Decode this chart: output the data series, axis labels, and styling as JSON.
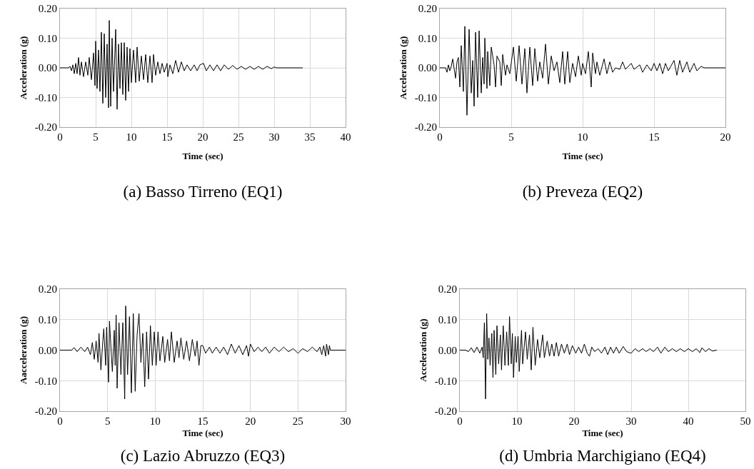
{
  "chart_data": [
    {
      "type": "line",
      "title": "(a) Basso Tirreno (EQ1)",
      "xlabel": "Time (sec)",
      "ylabel": "Acceleration (g)",
      "xlim": [
        0,
        40
      ],
      "xticks": [
        0,
        5,
        10,
        15,
        20,
        25,
        30,
        35,
        40
      ],
      "ylim": [
        -0.2,
        0.2
      ],
      "yticks": [
        {
          "value": -0.2,
          "label": "-0.20"
        },
        {
          "value": -0.1,
          "label": "-0.10"
        },
        {
          "value": 0,
          "label": "0.00"
        },
        {
          "value": 0.1,
          "label": "0.10"
        },
        {
          "value": 0.2,
          "label": "0.20"
        }
      ],
      "grid": true,
      "marker": "none",
      "line_style": "solid",
      "series": [
        {
          "color": "#000000",
          "x": [
            0,
            1.2,
            1.4,
            1.6,
            1.8,
            2.0,
            2.2,
            2.4,
            2.6,
            2.8,
            3.0,
            3.3,
            3.6,
            3.9,
            4.1,
            4.4,
            4.7,
            4.9,
            5.0,
            5.2,
            5.4,
            5.6,
            5.8,
            6.0,
            6.2,
            6.4,
            6.6,
            6.8,
            6.9,
            7.1,
            7.3,
            7.5,
            7.8,
            8.0,
            8.2,
            8.4,
            8.6,
            8.8,
            9.0,
            9.2,
            9.4,
            9.6,
            9.8,
            10.0,
            10.3,
            10.6,
            10.8,
            11.1,
            11.4,
            11.7,
            12.0,
            12.3,
            12.6,
            12.9,
            13.1,
            13.4,
            13.7,
            14.0,
            14.3,
            14.6,
            15.0,
            15.1,
            15.4,
            15.8,
            16.2,
            16.6,
            17.0,
            17.4,
            17.8,
            18.3,
            18.8,
            19.2,
            19.6,
            20.1,
            20.5,
            21.0,
            21.5,
            22.0,
            22.5,
            23.0,
            23.6,
            24.2,
            24.8,
            25.4,
            26.0,
            26.6,
            27.2,
            27.8,
            28.4,
            29.0,
            29.6,
            30.0,
            30.3,
            34
          ],
          "values": [
            0,
            0,
            0.005,
            -0.01,
            0.01,
            -0.02,
            0.015,
            -0.02,
            0.035,
            -0.025,
            0.02,
            -0.03,
            0.02,
            -0.025,
            0.035,
            -0.04,
            0.05,
            -0.06,
            0.09,
            -0.07,
            0.06,
            -0.08,
            0.12,
            -0.12,
            0.115,
            -0.1,
            0.08,
            -0.135,
            0.16,
            -0.13,
            0.1,
            -0.08,
            0.13,
            -0.14,
            0.08,
            -0.07,
            0.085,
            -0.09,
            0.085,
            -0.11,
            0.07,
            -0.08,
            0.065,
            -0.05,
            0.06,
            -0.05,
            0.07,
            -0.045,
            0.04,
            -0.04,
            0.045,
            -0.05,
            0.04,
            -0.05,
            0.045,
            -0.025,
            0.02,
            -0.02,
            0.015,
            -0.015,
            0.015,
            -0.03,
            0.01,
            -0.02,
            0.025,
            -0.015,
            0.02,
            -0.01,
            0.01,
            -0.01,
            0.01,
            -0.01,
            0.01,
            0.015,
            -0.01,
            0.01,
            -0.01,
            0.01,
            -0.01,
            0.01,
            -0.005,
            0.008,
            -0.005,
            0.005,
            -0.005,
            0.005,
            -0.005,
            0.005,
            -0.005,
            0.005,
            -0.003,
            0.003,
            0,
            0
          ]
        }
      ]
    },
    {
      "type": "line",
      "title": "(b) Preveza (EQ2)",
      "xlabel": "Time (sec)",
      "ylabel": "Acceleration (g)",
      "xlim": [
        0,
        20
      ],
      "xticks": [
        0,
        5,
        10,
        15,
        20
      ],
      "ylim": [
        -0.2,
        0.2
      ],
      "yticks": [
        {
          "value": -0.2,
          "label": "-0.20"
        },
        {
          "value": -0.1,
          "label": "-0.10"
        },
        {
          "value": 0,
          "label": "0.00"
        },
        {
          "value": 0.1,
          "label": "0.10"
        },
        {
          "value": 0.2,
          "label": "0.20"
        }
      ],
      "grid": true,
      "marker": "none",
      "line_style": "solid",
      "series": [
        {
          "color": "#000000",
          "x": [
            0,
            0.4,
            0.5,
            0.6,
            0.7,
            0.8,
            0.9,
            1.1,
            1.2,
            1.3,
            1.4,
            1.5,
            1.65,
            1.75,
            1.9,
            2.05,
            2.2,
            2.3,
            2.4,
            2.5,
            2.65,
            2.75,
            2.9,
            3.0,
            3.1,
            3.15,
            3.3,
            3.35,
            3.5,
            3.6,
            3.8,
            3.9,
            4.0,
            4.2,
            4.3,
            4.4,
            4.6,
            4.7,
            4.9,
            5.15,
            5.35,
            5.55,
            5.75,
            5.95,
            6.1,
            6.3,
            6.5,
            6.65,
            6.85,
            7.0,
            7.2,
            7.4,
            7.6,
            7.8,
            8.0,
            8.2,
            8.4,
            8.6,
            8.75,
            8.95,
            9.1,
            9.3,
            9.5,
            9.7,
            9.9,
            10.0,
            10.2,
            10.4,
            10.6,
            10.7,
            10.9,
            11.0,
            11.2,
            11.5,
            11.7,
            11.9,
            12.1,
            12.3,
            12.6,
            12.8,
            13.0,
            13.4,
            13.6,
            14.0,
            14.2,
            14.5,
            14.8,
            15.0,
            15.2,
            15.4,
            15.6,
            15.8,
            16.0,
            16.4,
            16.6,
            16.8,
            17.0,
            17.3,
            17.5,
            17.8,
            18.0,
            18.3,
            18.5,
            20
          ],
          "values": [
            0,
            0,
            -0.015,
            0.01,
            -0.01,
            0.005,
            0.03,
            -0.035,
            0.02,
            0.035,
            -0.065,
            0.075,
            -0.08,
            0.14,
            -0.16,
            0.13,
            -0.085,
            0.025,
            -0.13,
            0.12,
            -0.1,
            0.125,
            -0.085,
            0.035,
            -0.055,
            0.1,
            -0.07,
            0.055,
            -0.06,
            0.07,
            0.01,
            -0.065,
            0.04,
            0.02,
            -0.06,
            0.045,
            -0.025,
            0.01,
            -0.02,
            0.07,
            -0.045,
            0.075,
            -0.055,
            0.065,
            -0.085,
            0.07,
            -0.06,
            0.065,
            -0.045,
            0.02,
            -0.035,
            0.08,
            -0.055,
            0.04,
            -0.01,
            0.02,
            -0.05,
            0.055,
            -0.055,
            0.055,
            -0.05,
            0.015,
            -0.03,
            0.04,
            -0.025,
            0.015,
            -0.02,
            0.055,
            -0.065,
            0.05,
            -0.02,
            0.02,
            -0.025,
            0.03,
            -0.02,
            0.02,
            -0.015,
            0,
            -0.005,
            0.02,
            -0.005,
            0.015,
            -0.005,
            0.01,
            -0.015,
            0.01,
            -0.01,
            0.015,
            -0.01,
            0.015,
            -0.02,
            0.015,
            -0.01,
            0.025,
            -0.025,
            0.025,
            -0.015,
            0.02,
            -0.015,
            0.015,
            -0.01,
            0.005,
            0,
            0
          ]
        }
      ]
    },
    {
      "type": "line",
      "title": "(c) Lazio Abruzzo (EQ3)",
      "xlabel": "Time (sec)",
      "ylabel": "Aacceleration (g)",
      "xlim": [
        0,
        30
      ],
      "xticks": [
        0,
        5,
        10,
        15,
        20,
        25,
        30
      ],
      "ylim": [
        -0.2,
        0.2
      ],
      "yticks": [
        {
          "value": -0.2,
          "label": "-0.20"
        },
        {
          "value": -0.1,
          "label": "-0.10"
        },
        {
          "value": 0,
          "label": "0.00"
        },
        {
          "value": 0.1,
          "label": "0.10"
        },
        {
          "value": 0.2,
          "label": "0.20"
        }
      ],
      "grid": true,
      "marker": "none",
      "line_style": "solid",
      "series": [
        {
          "color": "#000000",
          "x": [
            0,
            1.2,
            1.5,
            1.8,
            2.2,
            2.6,
            2.9,
            3.2,
            3.4,
            3.6,
            3.8,
            4.0,
            4.1,
            4.3,
            4.5,
            4.6,
            4.8,
            4.9,
            5.1,
            5.2,
            5.5,
            5.7,
            5.8,
            5.9,
            6.0,
            6.2,
            6.4,
            6.6,
            6.8,
            6.9,
            7.1,
            7.3,
            7.5,
            7.7,
            7.9,
            8.1,
            8.3,
            8.5,
            8.7,
            8.9,
            9.1,
            9.3,
            9.5,
            9.7,
            9.9,
            10.1,
            10.3,
            10.5,
            10.8,
            11.0,
            11.3,
            11.5,
            11.7,
            12.0,
            12.3,
            12.5,
            12.7,
            13.0,
            13.3,
            13.6,
            13.9,
            14.2,
            14.4,
            14.6,
            14.8,
            15.0,
            15.3,
            15.7,
            16.0,
            16.4,
            16.8,
            17.2,
            17.6,
            18.0,
            18.4,
            18.8,
            19.2,
            19.6,
            19.8,
            20.0,
            20.4,
            20.8,
            21.2,
            21.6,
            22.0,
            22.5,
            23.0,
            23.5,
            24.0,
            24.5,
            25.0,
            25.5,
            26.0,
            26.5,
            27.0,
            27.3,
            27.5,
            27.7,
            27.9,
            28.0,
            28.2,
            28.3,
            28.4,
            30
          ],
          "values": [
            0,
            0,
            0.008,
            -0.005,
            0.01,
            -0.005,
            0.01,
            -0.015,
            0.025,
            -0.03,
            0.03,
            -0.04,
            0.055,
            -0.065,
            0.03,
            0.07,
            -0.05,
            0.075,
            -0.105,
            0.095,
            -0.07,
            0.065,
            -0.05,
            0.115,
            -0.125,
            0.09,
            -0.08,
            0.09,
            -0.16,
            0.145,
            -0.08,
            0.11,
            -0.14,
            0.12,
            -0.135,
            0.05,
            0.12,
            -0.04,
            0.055,
            -0.12,
            0.06,
            -0.095,
            0.08,
            -0.05,
            0.06,
            -0.05,
            0.06,
            -0.035,
            0.045,
            -0.04,
            0.035,
            -0.035,
            0.06,
            -0.04,
            0.03,
            -0.025,
            0.04,
            -0.03,
            0.03,
            -0.035,
            0.035,
            -0.02,
            0.03,
            -0.05,
            0.015,
            0.015,
            -0.01,
            0.01,
            -0.01,
            0.01,
            -0.01,
            0.01,
            -0.015,
            0.02,
            -0.01,
            0.015,
            -0.015,
            0.015,
            -0.02,
            0.02,
            -0.005,
            0.01,
            -0.005,
            0.01,
            -0.01,
            0.01,
            -0.005,
            0.01,
            -0.005,
            0.005,
            -0.01,
            0.005,
            -0.005,
            0.01,
            -0.005,
            0.01,
            -0.015,
            0.015,
            -0.02,
            0.02,
            -0.015,
            0.015,
            0,
            0
          ]
        }
      ]
    },
    {
      "type": "line",
      "title": "(d) Umbria Marchigiano (EQ4)",
      "xlabel": "Time (sec)",
      "ylabel": "Acceleration (g)",
      "xlim": [
        0,
        50
      ],
      "xticks": [
        0,
        10,
        20,
        30,
        40,
        50
      ],
      "ylim": [
        -0.2,
        0.2
      ],
      "yticks": [
        {
          "value": -0.2,
          "label": "-0.20"
        },
        {
          "value": -0.1,
          "label": "-0.10"
        },
        {
          "value": 0,
          "label": "0.00"
        },
        {
          "value": 0.1,
          "label": "0.10"
        },
        {
          "value": 0.2,
          "label": "0.20"
        }
      ],
      "grid": true,
      "marker": "none",
      "line_style": "solid",
      "series": [
        {
          "color": "#000000",
          "x": [
            0,
            1,
            1.5,
            2,
            2.5,
            3,
            3.5,
            3.9,
            4.1,
            4.3,
            4.5,
            4.7,
            4.9,
            5.1,
            5.3,
            5.6,
            5.8,
            6.0,
            6.3,
            6.5,
            6.8,
            7.1,
            7.3,
            7.6,
            7.9,
            8.2,
            8.5,
            8.7,
            9.0,
            9.2,
            9.4,
            9.7,
            9.9,
            10.2,
            10.4,
            10.8,
            11.0,
            11.5,
            11.8,
            12.2,
            12.5,
            12.8,
            13.2,
            13.6,
            14.0,
            14.5,
            14.8,
            15.3,
            15.7,
            16.1,
            16.5,
            16.9,
            17.3,
            17.8,
            18.3,
            18.8,
            19.2,
            19.7,
            20.3,
            20.8,
            21.3,
            21.8,
            22.3,
            22.7,
            23.1,
            23.6,
            24.2,
            24.8,
            25.4,
            25.9,
            26.4,
            26.9,
            27.4,
            27.9,
            28.6,
            29.2,
            30.0,
            30.7,
            31.3,
            32.0,
            32.6,
            33.3,
            33.9,
            34.6,
            35.2,
            35.9,
            36.5,
            37.2,
            37.9,
            38.6,
            39.3,
            40.0,
            40.7,
            41.4,
            42.0,
            42.4,
            43.0,
            43.6,
            44.2,
            45
          ],
          "values": [
            0,
            0,
            -0.005,
            0.008,
            -0.008,
            0.01,
            -0.01,
            0.01,
            -0.025,
            0.09,
            -0.16,
            0.12,
            -0.03,
            0.04,
            -0.05,
            0.055,
            -0.09,
            0.065,
            -0.08,
            0.08,
            -0.045,
            0.05,
            -0.065,
            0.08,
            -0.05,
            0.06,
            -0.05,
            0.11,
            -0.045,
            0.055,
            -0.09,
            0.045,
            -0.04,
            0.045,
            -0.07,
            0.065,
            -0.045,
            0.06,
            -0.03,
            0.05,
            -0.065,
            0.075,
            -0.05,
            0.035,
            -0.025,
            0.05,
            -0.025,
            0.03,
            -0.02,
            0.02,
            -0.02,
            0.025,
            -0.02,
            0.02,
            -0.01,
            0.02,
            -0.015,
            0.015,
            -0.01,
            0.01,
            -0.01,
            0.02,
            -0.01,
            -0.02,
            0.01,
            -0.005,
            0.005,
            -0.01,
            0.01,
            -0.015,
            0.01,
            -0.01,
            0.01,
            -0.01,
            0.012,
            -0.005,
            -0.01,
            0.005,
            -0.005,
            0.005,
            -0.005,
            0.005,
            -0.005,
            0.01,
            -0.01,
            0.01,
            -0.005,
            0.005,
            -0.005,
            0.005,
            -0.005,
            0.005,
            -0.005,
            0.005,
            -0.008,
            0.008,
            -0.005,
            0.005,
            -0.003,
            0
          ]
        }
      ]
    }
  ]
}
